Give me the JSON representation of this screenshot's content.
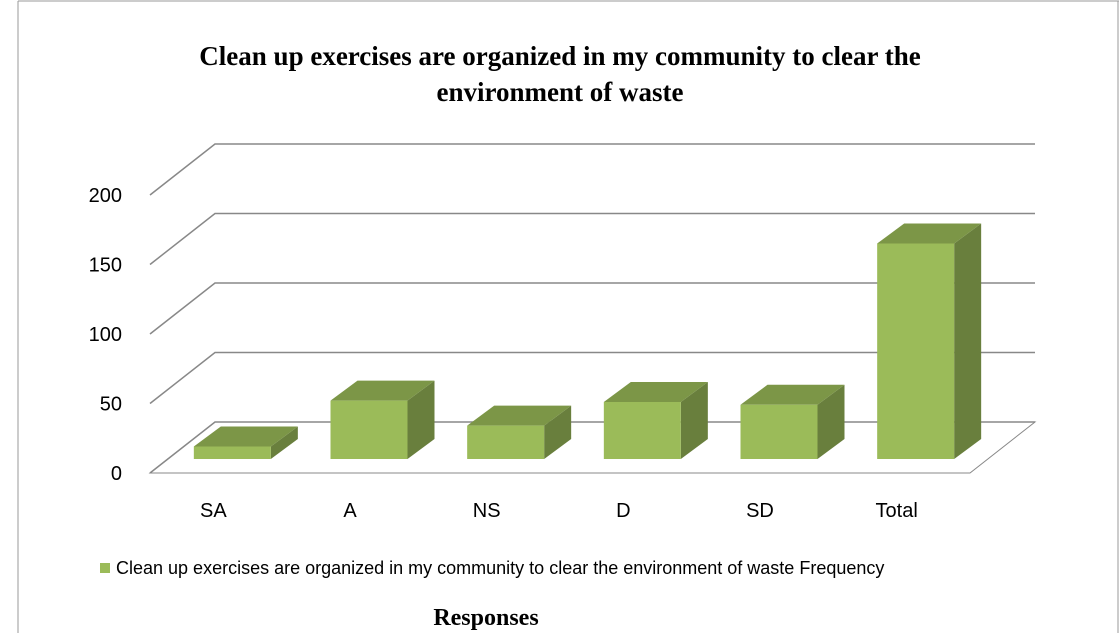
{
  "chart_data": {
    "type": "bar3d",
    "title": "Clean up exercises are organized in my community to clear the environment of waste",
    "categories": [
      "SA",
      "A",
      "NS",
      "D",
      "SD",
      "Total"
    ],
    "series": [
      {
        "name": "Clean up exercises are organized in my community to clear the environment of waste Frequency",
        "color": "#9bbb59",
        "values": [
          9,
          42,
          24,
          41,
          39,
          155
        ]
      }
    ],
    "ylim": [
      0,
      200
    ],
    "yticks": [
      0,
      50,
      100,
      150,
      200
    ],
    "grid": true,
    "xlabel": "Responses",
    "legend": "bottom"
  }
}
